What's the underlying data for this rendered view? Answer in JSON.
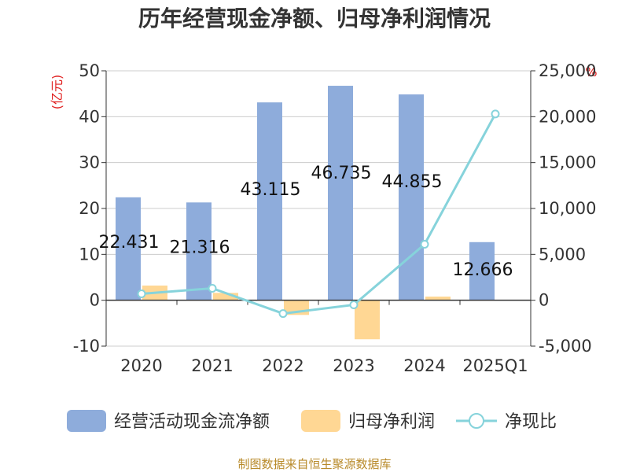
{
  "title": "历年经营现金净额、归母净利润情况",
  "left_unit": "(亿元)",
  "right_unit": "%",
  "source": "制图数据来自恒生聚源数据库",
  "colors": {
    "cash_bar": "#8eacdb",
    "profit_bar": "#ffd794",
    "ratio_line": "#86d3db",
    "grid": "#cccccc",
    "axis": "#333333"
  },
  "chart_data": {
    "type": "bar",
    "title": "历年经营现金净额、归母净利润情况",
    "categories": [
      "2020",
      "2021",
      "2022",
      "2023",
      "2024",
      "2025Q1"
    ],
    "ylim": [
      -10,
      50
    ],
    "yticks": [
      "50",
      "40",
      "30",
      "20",
      "10",
      "0",
      "-10"
    ],
    "y2lim": [
      -5000,
      25000
    ],
    "y2ticks": [
      "25,000",
      "20,000",
      "15,000",
      "10,000",
      "5,000",
      "0",
      "-5,000"
    ],
    "grid": true,
    "legend": "bottom",
    "series": [
      {
        "name": "经营活动现金流净额",
        "type": "bar",
        "axis": "left",
        "values": [
          22.431,
          21.316,
          43.115,
          46.735,
          44.855,
          12.666
        ],
        "labels": [
          "22.431",
          "21.316",
          "43.115",
          "46.735",
          "44.855",
          "12.666"
        ]
      },
      {
        "name": "归母净利润",
        "type": "bar",
        "axis": "left",
        "values": [
          3.2,
          1.6,
          -3.2,
          -8.5,
          0.8,
          null
        ]
      },
      {
        "name": "净现比",
        "type": "line",
        "axis": "right",
        "values": [
          700,
          1300,
          -1450,
          -500,
          6100,
          20300
        ]
      }
    ]
  }
}
